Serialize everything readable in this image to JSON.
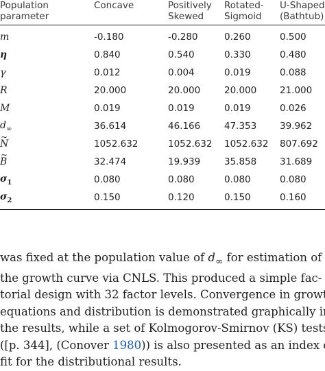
{
  "table": {
    "headers": {
      "param_line1": "Population",
      "param_line2": "parameter",
      "concave": "Concave",
      "pos_line1": "Positively",
      "pos_line2": "Skewed",
      "rot_line1": "Rotated-",
      "rot_line2": "Sigmoid",
      "u_line1": "U-Shaped",
      "u_line2": "(Bathtub)"
    },
    "rows": [
      {
        "param": "m",
        "values": [
          "-0.180",
          "-0.280",
          "0.260",
          "0.500"
        ]
      },
      {
        "param": "η",
        "values": [
          "0.840",
          "0.540",
          "0.330",
          "0.480"
        ]
      },
      {
        "param": "γ",
        "values": [
          "0.012",
          "0.004",
          "0.019",
          "0.088"
        ]
      },
      {
        "param": "R",
        "values": [
          "20.000",
          "20.000",
          "20.000",
          "21.000"
        ]
      },
      {
        "param": "M",
        "values": [
          "0.019",
          "0.019",
          "0.019",
          "0.026"
        ]
      },
      {
        "param": "d",
        "sub": "∞",
        "values": [
          "36.614",
          "46.166",
          "47.353",
          "39.962"
        ]
      },
      {
        "param": "N",
        "values": [
          "1052.632",
          "1052.632",
          "1052.632",
          "807.692"
        ]
      },
      {
        "param": "B",
        "values": [
          "32.474",
          "19.939",
          "35.858",
          "31.689"
        ]
      },
      {
        "param": "σ",
        "sub": "1",
        "values": [
          "0.080",
          "0.080",
          "0.080",
          "0.080"
        ]
      },
      {
        "param": "σ",
        "sub": "2",
        "values": [
          "0.150",
          "0.120",
          "0.150",
          "0.160"
        ]
      }
    ]
  },
  "paragraph": {
    "l1_a": "was fixed at the population value of ",
    "l1_math": "d",
    "l1_sub": "∞",
    "l1_b": " for estimation of",
    "l2": "the growth curve via CNLS. This produced a simple fac-",
    "l3": "torial design with 32 factor levels. Convergence in growth",
    "l4": "equations and distribution is demonstrated graphically in",
    "l5": "the results, while a set of Kolmogorov-Smirnov (KS) tests",
    "l6_a": "([p. 344], (Conover ",
    "l6_link": "1980",
    "l6_b": ")) is also presented as an index of",
    "l7": "fit for the distributional results."
  }
}
